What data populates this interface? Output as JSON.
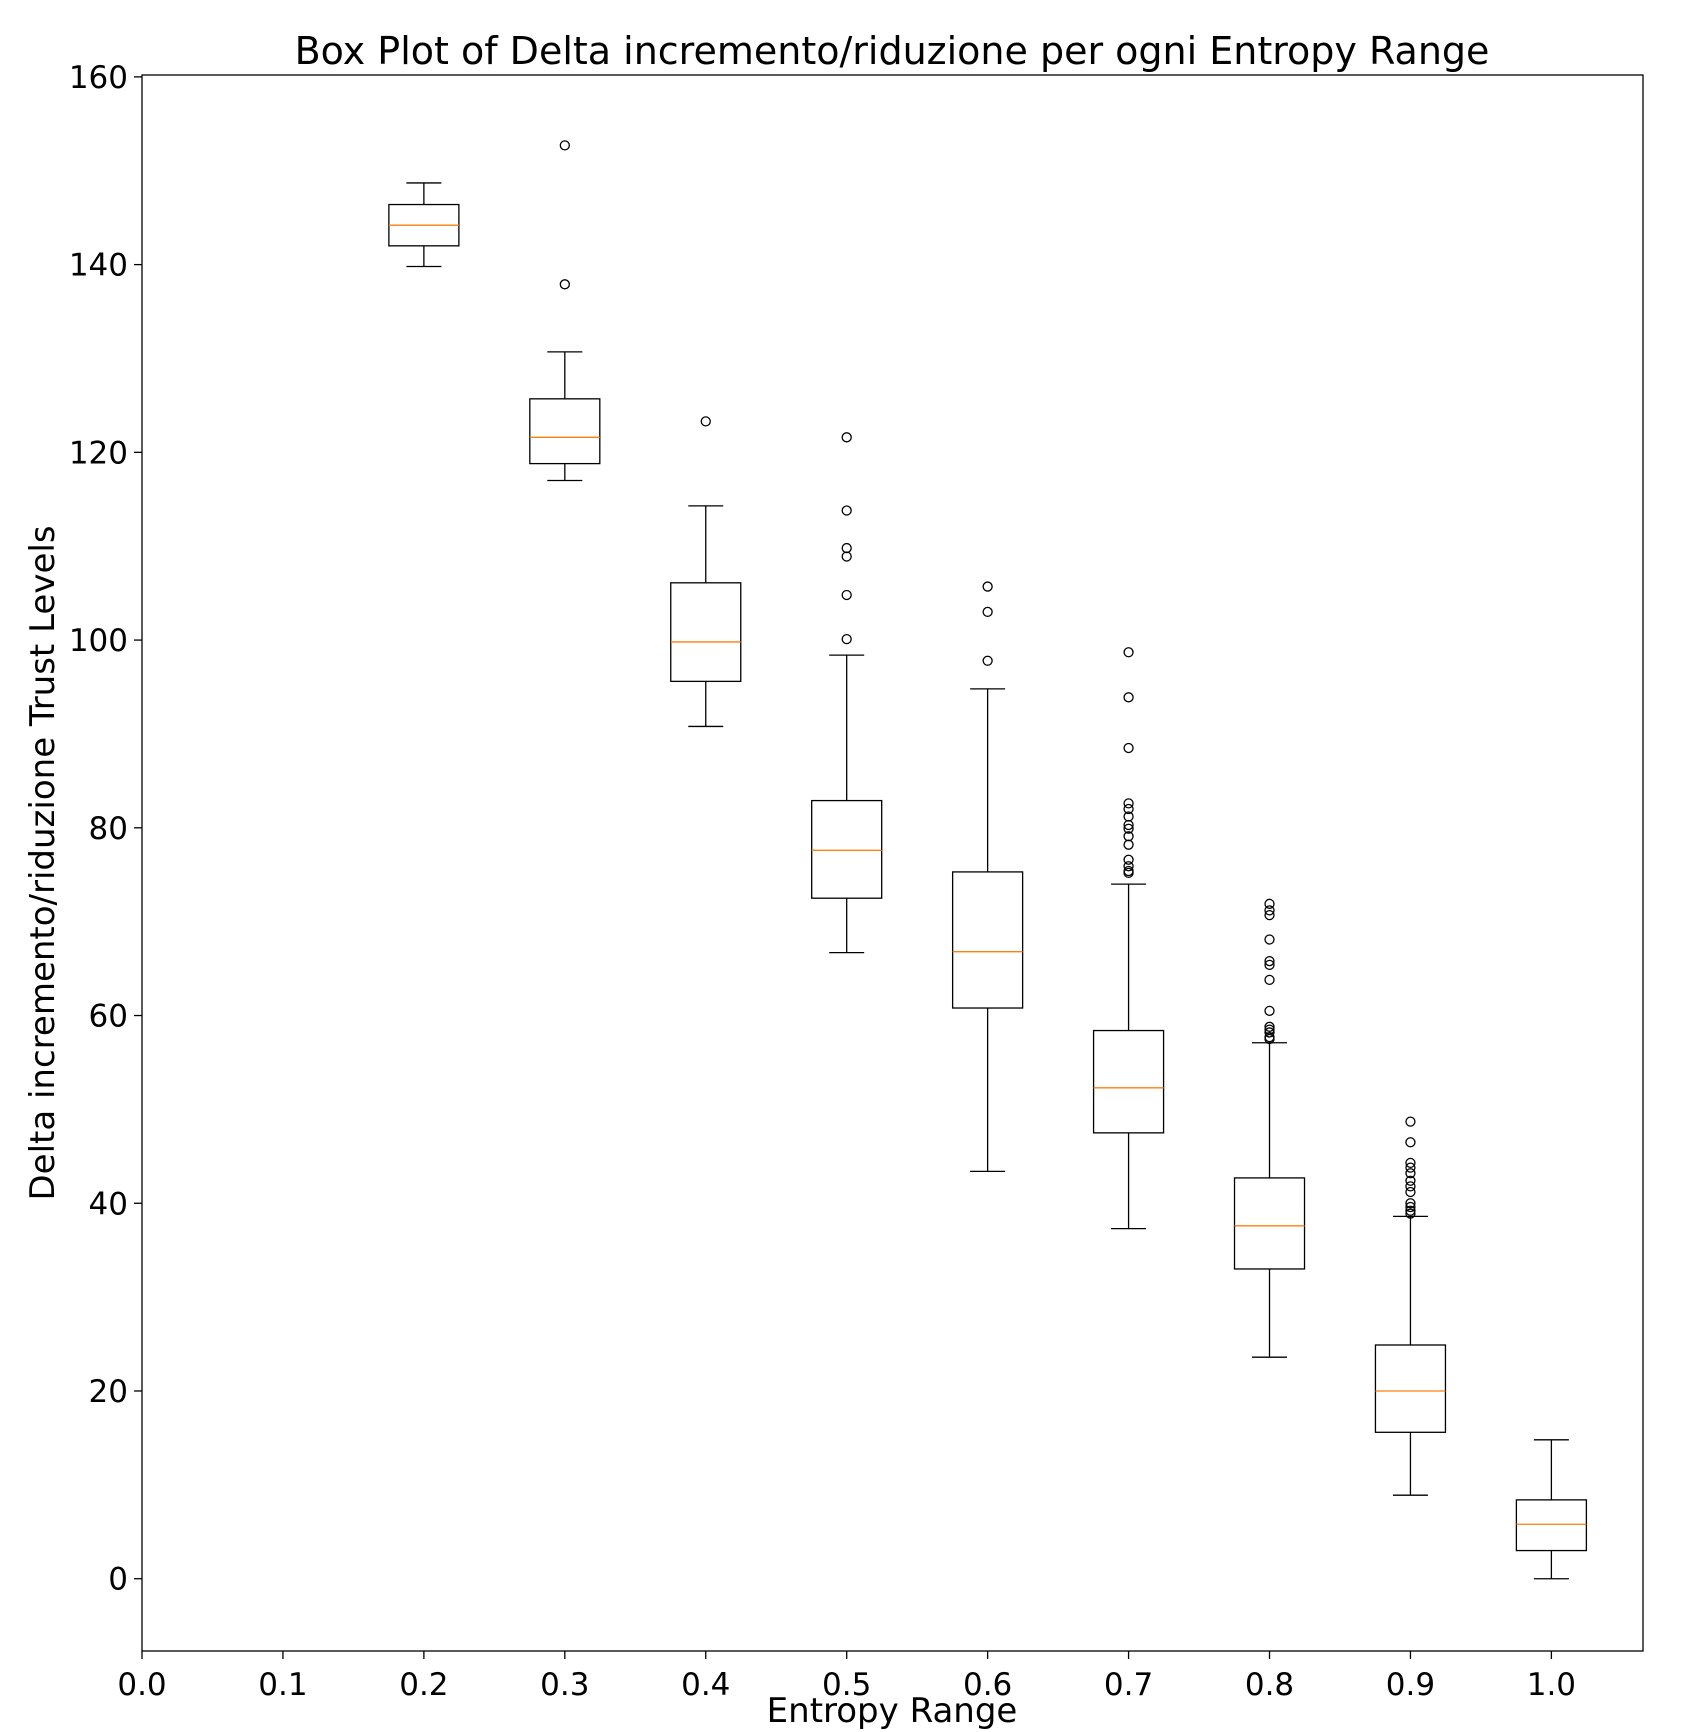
{
  "chart_data": {
    "type": "box",
    "title": "Box Plot of Delta incremento/riduzione per ogni Entropy Range",
    "xlabel": "Entropy Range",
    "ylabel": "Delta incremento/riduzione Trust Levels",
    "xlim": [
      0.0,
      1.065
    ],
    "ylim": [
      -7.7,
      160.2
    ],
    "xticks": [
      "0.0",
      "0.1",
      "0.2",
      "0.3",
      "0.4",
      "0.5",
      "0.6",
      "0.7",
      "0.8",
      "0.9",
      "1.0"
    ],
    "yticks": [
      "0",
      "20",
      "40",
      "60",
      "80",
      "100",
      "120",
      "140",
      "160"
    ],
    "grid": false,
    "colors": {
      "box": "#000000",
      "median": "#ff7f0e",
      "flier": "#000000"
    },
    "boxes": [
      {
        "x": 0.2,
        "whislo": 139.8,
        "q1": 142.0,
        "med": 144.2,
        "q3": 146.4,
        "whishi": 148.7,
        "fliers": []
      },
      {
        "x": 0.3,
        "whislo": 117.0,
        "q1": 118.8,
        "med": 121.6,
        "q3": 125.7,
        "whishi": 130.7,
        "fliers": [
          152.7,
          137.9
        ]
      },
      {
        "x": 0.4,
        "whislo": 90.8,
        "q1": 95.6,
        "med": 99.8,
        "q3": 106.1,
        "whishi": 114.3,
        "fliers": [
          123.3
        ]
      },
      {
        "x": 0.5,
        "whislo": 66.7,
        "q1": 72.5,
        "med": 77.6,
        "q3": 82.9,
        "whishi": 98.4,
        "fliers": [
          121.6,
          113.8,
          109.8,
          108.9,
          104.8,
          100.1
        ]
      },
      {
        "x": 0.6,
        "whislo": 43.4,
        "q1": 60.8,
        "med": 66.8,
        "q3": 75.3,
        "whishi": 94.8,
        "fliers": [
          105.7,
          103.0,
          97.8
        ]
      },
      {
        "x": 0.7,
        "whislo": 37.3,
        "q1": 47.5,
        "med": 52.3,
        "q3": 58.4,
        "whishi": 74.0,
        "fliers": [
          98.7,
          93.9,
          88.5,
          82.6,
          82.0,
          81.2,
          80.3,
          79.9,
          79.1,
          78.2,
          76.6,
          75.9,
          75.4,
          75.2
        ]
      },
      {
        "x": 0.8,
        "whislo": 23.6,
        "q1": 33.0,
        "med": 37.6,
        "q3": 42.7,
        "whishi": 57.1,
        "fliers": [
          71.9,
          71.2,
          70.7,
          68.1,
          65.8,
          65.4,
          63.8,
          60.5,
          58.8,
          58.5,
          58.2,
          57.7,
          57.5
        ]
      },
      {
        "x": 0.9,
        "whislo": 8.9,
        "q1": 15.6,
        "med": 20.0,
        "q3": 24.9,
        "whishi": 38.6,
        "fliers": [
          48.7,
          46.5,
          44.3,
          43.8,
          43.2,
          42.4,
          41.8,
          41.2,
          40.0,
          39.6,
          39.2,
          38.9
        ]
      },
      {
        "x": 1.0,
        "whislo": 0.0,
        "q1": 3.0,
        "med": 5.8,
        "q3": 8.4,
        "whishi": 14.8,
        "fliers": []
      }
    ]
  }
}
